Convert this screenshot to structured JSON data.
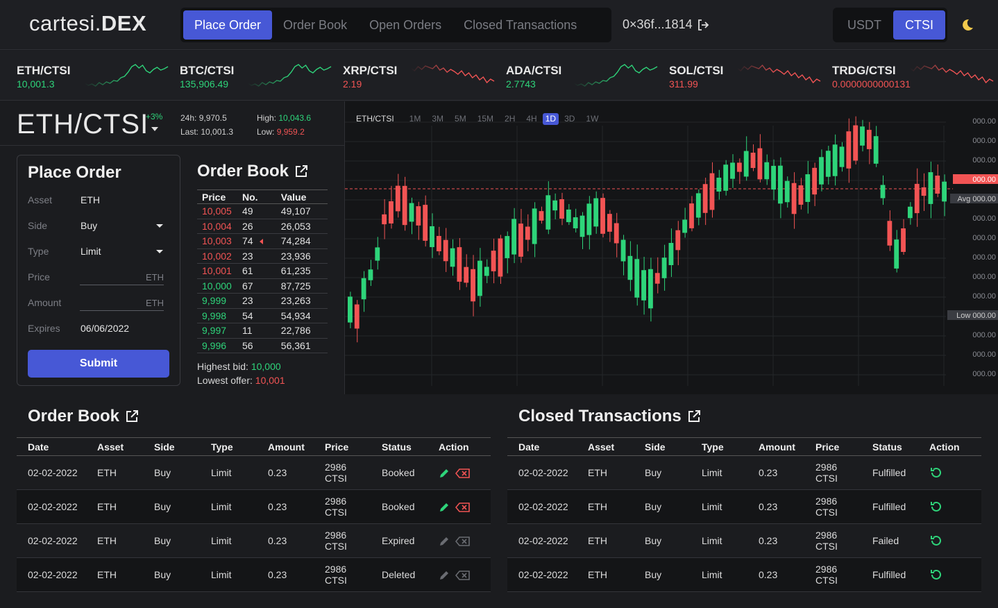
{
  "app": {
    "logo_light": "cartesi.",
    "logo_bold": "DEX"
  },
  "nav": {
    "tabs": [
      "Place Order",
      "Order Book",
      "Open Orders",
      "Closed Transactions"
    ],
    "active": 0
  },
  "wallet": {
    "address": "0×36f...1814"
  },
  "currency": {
    "options": [
      "USDT",
      "CTSI"
    ],
    "active": 1
  },
  "tickers": [
    {
      "pair": "ETH/CTSI",
      "value": "10,001.3",
      "trend": "up"
    },
    {
      "pair": "BTC/CTSI",
      "value": "135,906.49",
      "trend": "up"
    },
    {
      "pair": "XRP/CTSI",
      "value": "2.19",
      "trend": "down"
    },
    {
      "pair": "ADA/CTSI",
      "value": "2.7743",
      "trend": "up"
    },
    {
      "pair": "SOL/CTSI",
      "value": "311.99",
      "trend": "down"
    },
    {
      "pair": "TRDG/CTSI",
      "value": "0.0000000000131",
      "trend": "down"
    }
  ],
  "pair": {
    "name": "ETH/CTSI",
    "change": "+3%",
    "h24_label": "24h:",
    "h24": "9,970.5",
    "last_label": "Last:",
    "last": "10,001.3",
    "high_label": "High:",
    "high": "10,043.6",
    "low_label": "Low:",
    "low": "9,959.2"
  },
  "place_order": {
    "title": "Place Order",
    "asset_label": "Asset",
    "asset": "ETH",
    "side_label": "Side",
    "side": "Buy",
    "type_label": "Type",
    "type": "Limit",
    "price_label": "Price",
    "price_unit": "ETH",
    "amount_label": "Amount",
    "amount_unit": "ETH",
    "expires_label": "Expires",
    "expires": "06/06/2022",
    "submit": "Submit"
  },
  "order_book": {
    "title": "Order Book",
    "headers": [
      "Price",
      "No.",
      "Value"
    ],
    "rows": [
      [
        "10,005",
        "49",
        "49,107",
        "ask"
      ],
      [
        "10,004",
        "26",
        "26,053",
        "ask"
      ],
      [
        "10,003",
        "74",
        "74,284",
        "ask"
      ],
      [
        "10,002",
        "23",
        "23,936",
        "ask"
      ],
      [
        "10,001",
        "61",
        "61,235",
        "ask"
      ],
      [
        "10,000",
        "67",
        "87,725",
        "bid"
      ],
      [
        "9,999",
        "23",
        "23,263",
        "bid"
      ],
      [
        "9,998",
        "54",
        "54,934",
        "bid"
      ],
      [
        "9,997",
        "11",
        "22,786",
        "bid"
      ],
      [
        "9,996",
        "56",
        "56,361",
        "bid"
      ]
    ],
    "highest_bid_label": "Highest bid:",
    "highest_bid": "10,000",
    "lowest_offer_label": "Lowest offer:",
    "lowest_offer": "10,001"
  },
  "chart": {
    "pair": "ETH/CTSI",
    "periods": [
      "1M",
      "3M",
      "5M",
      "15M",
      "2H",
      "4H",
      "1D",
      "3D",
      "1W"
    ],
    "selected_period": "1D",
    "price_label": "000.00",
    "avg_label": "Avg 000.00",
    "low_label": "Low 000.00",
    "up_color": "#2ed47a",
    "down_color": "#f25454"
  },
  "chart_data": {
    "type": "candlestick",
    "y_tick_labels": [
      "000.00",
      "000.00",
      "000.00",
      "000.00",
      "000.00",
      "000.00",
      "000.00",
      "000.00",
      "000.00",
      "000.00",
      "000.00",
      "000.00",
      "000.00",
      "000.00"
    ]
  },
  "order_table": {
    "title": "Order Book",
    "headers": [
      "Date",
      "Asset",
      "Side",
      "Type",
      "Amount",
      "Price",
      "Status",
      "Action"
    ],
    "rows": [
      [
        "02-02-2022",
        "ETH",
        "Buy",
        "Limit",
        "0.23",
        "2986 CTSI",
        "Booked",
        "active"
      ],
      [
        "02-02-2022",
        "ETH",
        "Buy",
        "Limit",
        "0.23",
        "2986 CTSI",
        "Booked",
        "active"
      ],
      [
        "02-02-2022",
        "ETH",
        "Buy",
        "Limit",
        "0.23",
        "2986 CTSI",
        "Expired",
        "inactive"
      ],
      [
        "02-02-2022",
        "ETH",
        "Buy",
        "Limit",
        "0.23",
        "2986 CTSI",
        "Deleted",
        "inactive"
      ]
    ]
  },
  "closed_table": {
    "title": "Closed Transactions",
    "headers": [
      "Date",
      "Asset",
      "Side",
      "Type",
      "Amount",
      "Price",
      "Status",
      "Action"
    ],
    "rows": [
      [
        "02-02-2022",
        "ETH",
        "Buy",
        "Limit",
        "0.23",
        "2986 CTSI",
        "Fulfilled"
      ],
      [
        "02-02-2022",
        "ETH",
        "Buy",
        "Limit",
        "0.23",
        "2986 CTSI",
        "Fulfilled"
      ],
      [
        "02-02-2022",
        "ETH",
        "Buy",
        "Limit",
        "0.23",
        "2986 CTSI",
        "Failed"
      ],
      [
        "02-02-2022",
        "ETH",
        "Buy",
        "Limit",
        "0.23",
        "2986 CTSI",
        "Fulfilled"
      ]
    ]
  }
}
